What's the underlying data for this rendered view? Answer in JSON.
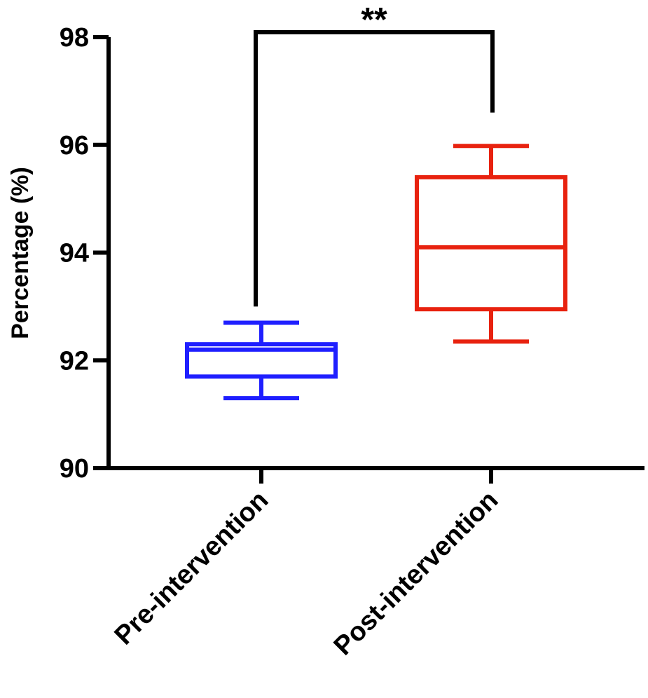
{
  "chart_data": {
    "type": "box",
    "ylabel": "Percentage (%)",
    "xlabel": "",
    "ylim": [
      90,
      98
    ],
    "yticks": [
      90,
      92,
      94,
      96,
      98
    ],
    "grid": false,
    "categories": [
      "Pre-intervention",
      "Post-intervention"
    ],
    "series": [
      {
        "category": "Pre-intervention",
        "color": "#1f1fff",
        "min": 91.3,
        "q1": 91.7,
        "median": 92.2,
        "q3": 92.3,
        "max": 92.7
      },
      {
        "category": "Post-intervention",
        "color": "#e8220f",
        "min": 92.35,
        "q1": 92.95,
        "median": 94.1,
        "q3": 95.4,
        "max": 95.98
      }
    ],
    "annotations": [
      {
        "type": "significance-bracket",
        "label": "**",
        "from": "Pre-intervention",
        "to": "Post-intervention",
        "y": 98,
        "left_drop_to": 93.0,
        "right_drop_to": 96.6
      }
    ]
  }
}
